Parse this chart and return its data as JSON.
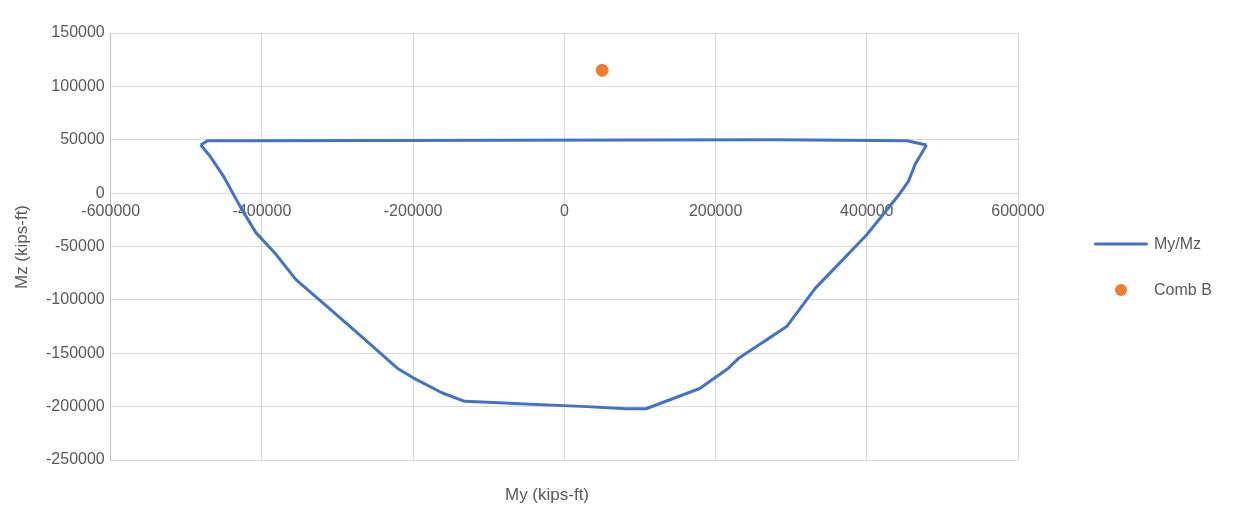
{
  "chart_data": {
    "type": "scatter",
    "xlabel": "My (kips-ft)",
    "ylabel": "Mz (kips-ft)",
    "xlim": [
      -600000,
      600000
    ],
    "xticks": [
      -600000,
      -400000,
      -200000,
      0,
      200000,
      400000,
      600000
    ],
    "ylim": [
      -250000,
      150000
    ],
    "yticks": [
      -250000,
      -200000,
      -150000,
      -100000,
      -50000,
      0,
      50000,
      100000,
      150000
    ],
    "grid": true,
    "legend": "right",
    "series": [
      {
        "name": "My/Mz",
        "type": "line",
        "color": "#4472c4",
        "marker": "none",
        "line_style": "solid",
        "x": [
          -481000,
          -468000,
          -451000,
          -430000,
          -408000,
          -383000,
          -355000,
          -311000,
          -264000,
          -221000,
          -200000,
          -162000,
          -132000,
          30000,
          81000,
          108000,
          179000,
          217000,
          230000,
          294000,
          332000,
          362000,
          400000,
          442000,
          455000,
          464000,
          479000
        ],
        "values": [
          45000,
          34000,
          16000,
          -11000,
          -37000,
          -56000,
          -81000,
          -108000,
          -137000,
          -164000,
          -173000,
          -187000,
          -195000,
          -200000,
          -202000,
          -202000,
          -183000,
          -164000,
          -155000,
          -125000,
          -89000,
          -67000,
          -39000,
          -2000,
          11000,
          27000,
          45000
        ]
      },
      {
        "type": "line",
        "color": "#4472c4",
        "marker": "none",
        "line_style": "solid",
        "x": [
          -481000,
          -472000,
          281000,
          453000,
          479000
        ],
        "values": [
          45000,
          49000,
          50000,
          49000,
          45000
        ]
      },
      {
        "name": "Comb B",
        "type": "scatter",
        "color": "#ed7d31",
        "marker": "circle",
        "x": [
          50000
        ],
        "values": [
          115000
        ]
      }
    ]
  }
}
